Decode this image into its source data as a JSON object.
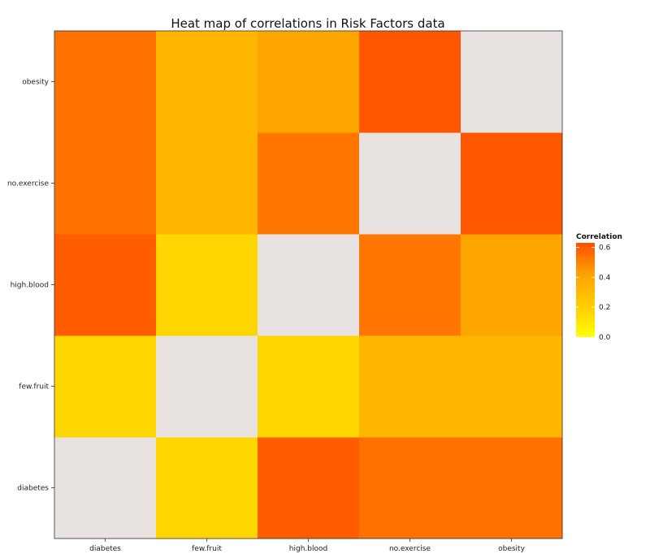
{
  "chart_data": {
    "type": "heatmap",
    "title": "Heat map of correlations in Risk Factors data",
    "xlabel": "",
    "ylabel": "",
    "x_categories": [
      "diabetes",
      "few.fruit",
      "high.blood",
      "no.exercise",
      "obesity"
    ],
    "y_categories": [
      "diabetes",
      "few.fruit",
      "high.blood",
      "no.exercise",
      "obesity"
    ],
    "values": [
      [
        null,
        0.26,
        0.61,
        0.58,
        0.58
      ],
      [
        0.26,
        null,
        0.26,
        0.42,
        0.42
      ],
      [
        0.61,
        0.26,
        null,
        0.57,
        0.5
      ],
      [
        0.58,
        0.42,
        0.57,
        null,
        0.62
      ],
      [
        0.58,
        0.42,
        0.5,
        0.62,
        null
      ]
    ],
    "diagonal_color": "#e8e2e1",
    "legend": {
      "title": "Correlation",
      "ticks": [
        "0.0",
        "0.2",
        "0.4",
        "0.6"
      ],
      "tick_values": [
        0.0,
        0.2,
        0.4,
        0.6
      ],
      "range": [
        0.0,
        0.63
      ],
      "placement": "right",
      "colors": [
        "#ffff00",
        "#ffd000",
        "#ffa500",
        "#ff5000"
      ]
    },
    "grid": false
  }
}
